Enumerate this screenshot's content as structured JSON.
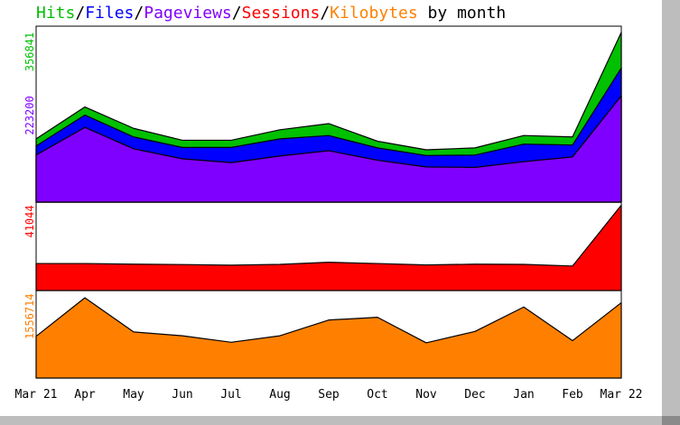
{
  "chart_data": {
    "type": "area",
    "title": {
      "parts": [
        {
          "text": "Hits",
          "color": "#00c000"
        },
        {
          "text": "/",
          "color": "#000000"
        },
        {
          "text": "Files",
          "color": "#0000ff"
        },
        {
          "text": "/",
          "color": "#000000"
        },
        {
          "text": "Pageviews",
          "color": "#8000ff"
        },
        {
          "text": "/",
          "color": "#000000"
        },
        {
          "text": "Sessions",
          "color": "#ff0000"
        },
        {
          "text": "/",
          "color": "#000000"
        },
        {
          "text": "Kilobytes",
          "color": "#ff8000"
        },
        {
          "text": " by month",
          "color": "#000000"
        }
      ]
    },
    "categories": [
      "Mar 21",
      "Apr",
      "May",
      "Jun",
      "Jul",
      "Aug",
      "Sep",
      "Oct",
      "Nov",
      "Dec",
      "Jan",
      "Feb",
      "Mar 22"
    ],
    "panels": [
      {
        "name": "hits_files_pageviews",
        "ylim": [
          0,
          356841
        ],
        "y_tick_labels": [
          {
            "text": "356841",
            "value": 356841,
            "color": "#00c000"
          },
          {
            "text": "223200",
            "value": 223200,
            "color": "#8000ff"
          }
        ],
        "series": [
          {
            "name": "Hits",
            "color": "#00c000",
            "values": [
              133000,
              200000,
              155000,
              130000,
              130000,
              152000,
              165000,
              128000,
              110000,
              114000,
              140000,
              137000,
              356841
            ]
          },
          {
            "name": "Files",
            "color": "#0000ff",
            "values": [
              118000,
              183000,
              137000,
              115000,
              115000,
              133000,
              140000,
              114000,
              98000,
              99000,
              122000,
              120000,
              282000
            ]
          },
          {
            "name": "Pageviews",
            "color": "#8000ff",
            "values": [
              99000,
              157000,
              112000,
              91000,
              83000,
              97000,
              108000,
              88000,
              74000,
              73000,
              85000,
              95000,
              223200
            ]
          }
        ]
      },
      {
        "name": "sessions",
        "ylim": [
          0,
          41044
        ],
        "y_tick_labels": [
          {
            "text": "41044",
            "value": 41044,
            "color": "#ff0000"
          }
        ],
        "series": [
          {
            "name": "Sessions",
            "color": "#ff0000",
            "values": [
              13000,
              13000,
              12700,
              12500,
              12200,
              12600,
              13600,
              13000,
              12300,
              12700,
              12600,
              11800,
              41044
            ]
          }
        ]
      },
      {
        "name": "kilobytes",
        "ylim": [
          0,
          1556714
        ],
        "y_tick_labels": [
          {
            "text": "1556714",
            "value": 1556714,
            "color": "#ff8000"
          }
        ],
        "series": [
          {
            "name": "Kilobytes",
            "color": "#ff8000",
            "values": [
              770000,
              1480000,
              850000,
              780000,
              660000,
              780000,
              1070000,
              1120000,
              650000,
              860000,
              1310000,
              690000,
              1390000
            ]
          }
        ]
      }
    ],
    "grid": false
  }
}
